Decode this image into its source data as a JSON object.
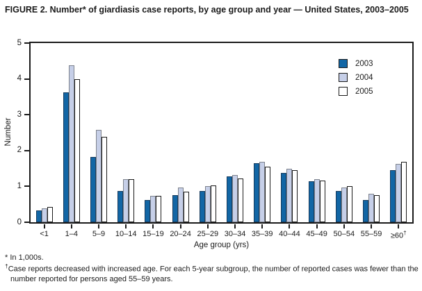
{
  "title": "FIGURE 2. Number* of giardiasis case reports, by age group and year — United States, 2003–2005",
  "footnotes": {
    "asterisk": "* In 1,000s.",
    "dagger_symbol": "†",
    "dagger_text": "Case reports decreased with increased age. For each 5-year subgroup, the number of reported cases was fewer than the number reported for persons aged 55–59 years."
  },
  "chart_data": {
    "type": "bar",
    "title": "Number of giardiasis case reports by age group and year, United States, 2003–2005",
    "xlabel": "Age group (yrs)",
    "ylabel": "Number",
    "ylim": [
      0,
      5
    ],
    "yticks": [
      0,
      1,
      2,
      3,
      4,
      5
    ],
    "grid": false,
    "legend_position": "top-right",
    "units_note": "values in 1,000s",
    "categories": [
      {
        "label": "<1"
      },
      {
        "label": "1–4"
      },
      {
        "label": "5–9"
      },
      {
        "label": "10–14"
      },
      {
        "label": "15–19"
      },
      {
        "label": "20–24"
      },
      {
        "label": "25–29"
      },
      {
        "label": "30–34"
      },
      {
        "label": "35–39"
      },
      {
        "label": "40–44"
      },
      {
        "label": "45–49"
      },
      {
        "label": "50–54"
      },
      {
        "label": "55–59"
      },
      {
        "label": "≥60",
        "sup": "†"
      }
    ],
    "series": [
      {
        "name": "2003",
        "fill": "#1266a5",
        "border": "#163a5c",
        "values": [
          0.33,
          3.62,
          1.83,
          0.88,
          0.62,
          0.75,
          0.88,
          1.28,
          1.65,
          1.38,
          1.15,
          0.88,
          0.62,
          1.45
        ]
      },
      {
        "name": "2004",
        "fill": "#c6cfe8",
        "border": "#7d828c",
        "values": [
          0.38,
          4.38,
          2.57,
          1.2,
          0.73,
          0.97,
          1.0,
          1.32,
          1.68,
          1.5,
          1.2,
          0.97,
          0.79,
          1.62
        ]
      },
      {
        "name": "2005",
        "fill": "#ffffff",
        "border": "#1a1a1a",
        "values": [
          0.42,
          4.0,
          2.38,
          1.2,
          0.73,
          0.85,
          1.02,
          1.23,
          1.55,
          1.45,
          1.17,
          1.0,
          0.76,
          1.68
        ]
      }
    ]
  }
}
